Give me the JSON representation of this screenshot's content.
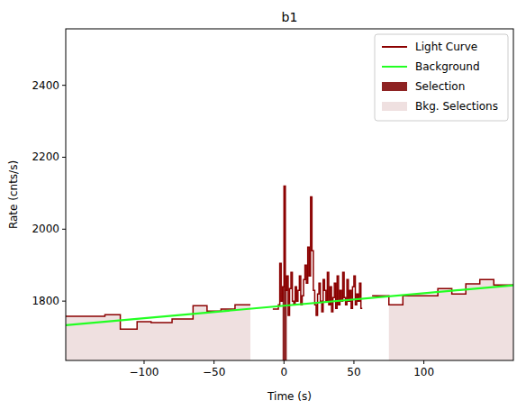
{
  "chart_data": {
    "type": "line",
    "title": "b1",
    "x_label": "Time (s)",
    "y_label": "Rate (cnts/s)",
    "xlim": [
      -156,
      164
    ],
    "ylim": [
      1635,
      2557
    ],
    "xticks": [
      -100,
      -50,
      0,
      50,
      100
    ],
    "yticks": [
      1800,
      2000,
      2200,
      2400
    ],
    "legend": "upper right",
    "grid": false,
    "series": [
      {
        "name": "Light Curve",
        "type": "step",
        "color": "#8b0000",
        "x": [
          -160,
          -128,
          -117,
          -105,
          -95,
          -80,
          -65,
          -55,
          -45,
          -35,
          -24,
          -8,
          -4,
          -3,
          -2,
          -1,
          0,
          1,
          2,
          3,
          4,
          5,
          6,
          7,
          8,
          9,
          10,
          11,
          12,
          13,
          14,
          15,
          16,
          17,
          18,
          19,
          20,
          21,
          22,
          23,
          24,
          25,
          26,
          27,
          28,
          29,
          30,
          31,
          32,
          33,
          34,
          35,
          36,
          37,
          38,
          39,
          40,
          41,
          42,
          43,
          44,
          45,
          46,
          47,
          48,
          49,
          50,
          51,
          52,
          53,
          54,
          55,
          56,
          63,
          75,
          85,
          100,
          110,
          120,
          130,
          140,
          150,
          170
        ],
        "values": [
          1758,
          1762,
          1722,
          1743,
          1740,
          1750,
          1787,
          1772,
          1778,
          1790,
          null,
          1778,
          1790,
          1905,
          1800,
          1840,
          2120,
          1830,
          1870,
          1760,
          1835,
          1880,
          1800,
          1790,
          1840,
          1800,
          1830,
          1870,
          1790,
          1815,
          1860,
          1900,
          1850,
          1950,
          1870,
          2090,
          1940,
          1830,
          1790,
          1760,
          1820,
          1850,
          1800,
          1770,
          1860,
          1830,
          1800,
          1880,
          1790,
          1840,
          1770,
          1810,
          1850,
          1780,
          1870,
          1790,
          1830,
          1800,
          1880,
          1810,
          1790,
          1860,
          1800,
          1830,
          1780,
          1840,
          1870,
          1790,
          1820,
          1800,
          1850,
          1780,
          null,
          1815,
          1790,
          1815,
          1815,
          1835,
          1820,
          1848,
          1860,
          1845,
          null
        ]
      },
      {
        "name": "Background",
        "type": "line",
        "color": "#22ff22",
        "x": [
          -156,
          164
        ],
        "values": [
          1733,
          1844
        ]
      },
      {
        "name": "Selection",
        "type": "span",
        "color": "#8e2323",
        "ranges": [
          [
            -1,
            2
          ]
        ]
      },
      {
        "name": "Bkg. Selections",
        "type": "span",
        "color": "#efe0e0",
        "ranges": [
          [
            -156,
            -24
          ],
          [
            75,
            164
          ]
        ]
      }
    ]
  }
}
